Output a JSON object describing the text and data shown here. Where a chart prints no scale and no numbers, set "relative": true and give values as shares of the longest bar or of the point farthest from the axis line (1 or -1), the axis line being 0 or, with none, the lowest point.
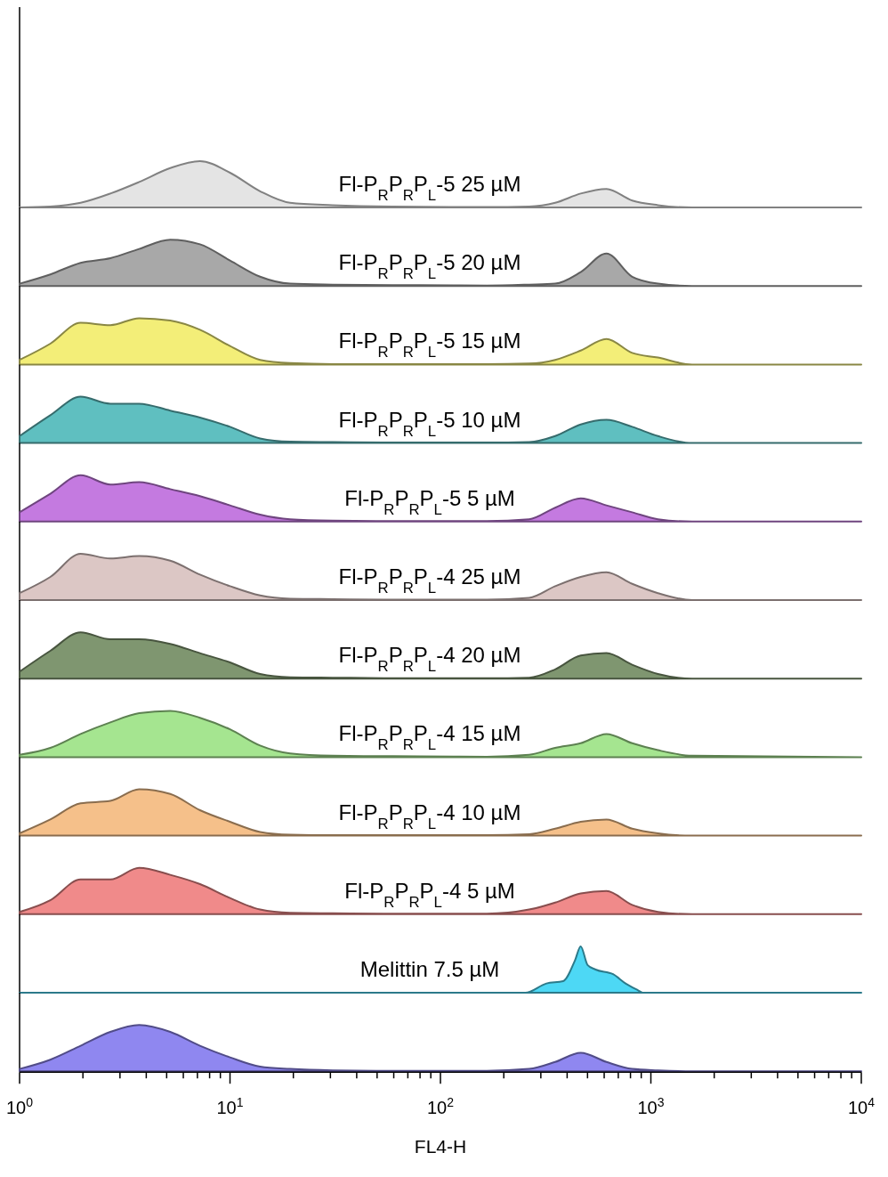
{
  "chart_data": [
    {
      "type": "area",
      "title": "Fl-P$_{R}$P$_{R}$P$_{L}$-5 25 µM",
      "relative": true,
      "log": "x",
      "tick_labels": false,
      "xlim": [
        1,
        10000
      ],
      "color": "#e4e4e4",
      "x": [
        1,
        1.4,
        1.95,
        2.7,
        3.7,
        5.2,
        7.2,
        10,
        13.9,
        19.3,
        30.7,
        59,
        166,
        264,
        351,
        464,
        615,
        815,
        1080,
        1570,
        10000
      ],
      "values": [
        0,
        0.02,
        0.1,
        0.3,
        0.55,
        0.85,
        1,
        0.75,
        0.35,
        0.1,
        0.05,
        0.02,
        0.01,
        0.02,
        0.1,
        0.3,
        0.4,
        0.15,
        0.05,
        0,
        0
      ]
    },
    {
      "type": "area",
      "title": "Fl-P$_{R}$P$_{R}$P$_{L}$-5 20 µM",
      "relative": true,
      "log": "x",
      "tick_labels": false,
      "xlim": [
        1,
        10000
      ],
      "color": "#a8a8a8",
      "x": [
        1,
        1.4,
        1.95,
        2.7,
        3.7,
        5.2,
        7.2,
        10,
        13.9,
        19.3,
        30.7,
        59,
        166,
        264,
        351,
        464,
        615,
        815,
        1080,
        1570,
        10000
      ],
      "values": [
        0.05,
        0.25,
        0.5,
        0.6,
        0.8,
        1,
        0.9,
        0.55,
        0.2,
        0.05,
        0.03,
        0.02,
        0.01,
        0.03,
        0.05,
        0.3,
        0.7,
        0.2,
        0.05,
        0,
        0
      ]
    },
    {
      "type": "area",
      "title": "Fl-P$_{R}$P$_{R}$P$_{L}$-5 15 µM",
      "relative": true,
      "log": "x",
      "tick_labels": false,
      "xlim": [
        1,
        10000
      ],
      "color": "#f3ee78",
      "x": [
        1,
        1.4,
        1.95,
        2.7,
        3.7,
        5.2,
        7.2,
        10,
        13.9,
        19.3,
        30.7,
        59,
        166,
        264,
        351,
        464,
        615,
        815,
        1080,
        1570,
        10000
      ],
      "values": [
        0.1,
        0.45,
        0.9,
        0.85,
        1,
        0.95,
        0.75,
        0.4,
        0.1,
        0.03,
        0.01,
        0.01,
        0.01,
        0.02,
        0.1,
        0.3,
        0.55,
        0.25,
        0.15,
        0,
        0
      ]
    },
    {
      "type": "area",
      "title": "Fl-P$_{R}$P$_{R}$P$_{L}$-5 10 µM",
      "relative": true,
      "log": "x",
      "tick_labels": false,
      "xlim": [
        1,
        10000
      ],
      "color": "#5fbfc0",
      "x": [
        1,
        1.4,
        1.95,
        2.7,
        3.7,
        5.2,
        7.2,
        10,
        13.9,
        19.3,
        30.7,
        59,
        166,
        264,
        351,
        464,
        615,
        815,
        1080,
        1570,
        10000
      ],
      "values": [
        0.15,
        0.6,
        1,
        0.85,
        0.85,
        0.7,
        0.55,
        0.35,
        0.1,
        0.03,
        0.02,
        0.01,
        0.01,
        0.02,
        0.15,
        0.4,
        0.5,
        0.35,
        0.15,
        0,
        0
      ]
    },
    {
      "type": "area",
      "title": "Fl-P$_{R}$P$_{R}$P$_{L}$-5 5 µM",
      "relative": true,
      "log": "x",
      "tick_labels": false,
      "xlim": [
        1,
        10000
      ],
      "color": "#c47ae0",
      "x": [
        1,
        1.4,
        1.95,
        2.7,
        3.7,
        5.2,
        7.2,
        10,
        13.9,
        19.3,
        30.7,
        59,
        166,
        264,
        351,
        464,
        615,
        815,
        1080,
        1570,
        10000
      ],
      "values": [
        0.2,
        0.6,
        1,
        0.8,
        0.85,
        0.7,
        0.55,
        0.35,
        0.15,
        0.05,
        0.02,
        0.01,
        0.01,
        0.05,
        0.3,
        0.5,
        0.35,
        0.2,
        0.05,
        0,
        0
      ]
    },
    {
      "type": "area",
      "title": "Fl-P$_{R}$P$_{R}$P$_{L}$-4 25 µM",
      "relative": true,
      "log": "x",
      "tick_labels": false,
      "xlim": [
        1,
        10000
      ],
      "color": "#dcc7c5",
      "x": [
        1,
        1.4,
        1.95,
        2.7,
        3.7,
        5.2,
        7.2,
        10,
        13.9,
        19.3,
        30.7,
        59,
        166,
        264,
        351,
        464,
        615,
        815,
        1080,
        1570,
        10000
      ],
      "values": [
        0.15,
        0.5,
        1,
        0.9,
        0.95,
        0.85,
        0.55,
        0.3,
        0.1,
        0.03,
        0.02,
        0.01,
        0.01,
        0.05,
        0.3,
        0.5,
        0.6,
        0.35,
        0.15,
        0,
        0
      ]
    },
    {
      "type": "area",
      "title": "Fl-P$_{R}$P$_{R}$P$_{L}$-4 20 µM",
      "relative": true,
      "log": "x",
      "tick_labels": false,
      "xlim": [
        1,
        10000
      ],
      "color": "#7f9670",
      "x": [
        1,
        1.4,
        1.95,
        2.7,
        3.7,
        5.2,
        7.2,
        10,
        13.9,
        19.3,
        30.7,
        59,
        166,
        264,
        351,
        464,
        615,
        815,
        1080,
        1570,
        10000
      ],
      "values": [
        0.15,
        0.6,
        1,
        0.85,
        0.85,
        0.75,
        0.55,
        0.35,
        0.1,
        0.03,
        0.02,
        0.01,
        0.01,
        0.02,
        0.2,
        0.5,
        0.55,
        0.3,
        0.1,
        0,
        0
      ]
    },
    {
      "type": "area",
      "title": "Fl-P$_{R}$P$_{R}$P$_{L}$-4 15 µM",
      "relative": true,
      "log": "x",
      "tick_labels": false,
      "xlim": [
        1,
        10000
      ],
      "color": "#a5e590",
      "x": [
        1,
        1.4,
        1.95,
        2.7,
        3.7,
        5.2,
        7.2,
        10,
        13.9,
        19.3,
        30.7,
        59,
        166,
        264,
        351,
        464,
        615,
        815,
        1080,
        1570,
        10000
      ],
      "values": [
        0.05,
        0.2,
        0.5,
        0.75,
        0.95,
        1,
        0.85,
        0.6,
        0.25,
        0.08,
        0.03,
        0.02,
        0.01,
        0.05,
        0.2,
        0.3,
        0.5,
        0.3,
        0.15,
        0.03,
        0
      ]
    },
    {
      "type": "area",
      "title": "Fl-P$_{R}$P$_{R}$P$_{L}$-4 10 µM",
      "relative": true,
      "log": "x",
      "tick_labels": false,
      "xlim": [
        1,
        10000
      ],
      "color": "#f5c08a",
      "x": [
        1,
        1.4,
        1.95,
        2.7,
        3.7,
        5.2,
        7.2,
        10,
        13.9,
        19.3,
        30.7,
        59,
        166,
        264,
        351,
        464,
        615,
        815,
        1080,
        1570,
        10000
      ],
      "values": [
        0.05,
        0.35,
        0.7,
        0.75,
        1,
        0.9,
        0.55,
        0.3,
        0.08,
        0.02,
        0.01,
        0.01,
        0.01,
        0.03,
        0.15,
        0.3,
        0.35,
        0.15,
        0.05,
        0,
        0
      ]
    },
    {
      "type": "area",
      "title": "Fl-P$_{R}$P$_{R}$P$_{L}$-4 5 µM",
      "relative": true,
      "log": "x",
      "tick_labels": false,
      "xlim": [
        1,
        10000
      ],
      "color": "#f08a8a",
      "x": [
        1,
        1.4,
        1.95,
        2.7,
        3.7,
        5.2,
        7.2,
        10,
        13.9,
        19.3,
        30.7,
        59,
        166,
        264,
        351,
        464,
        615,
        815,
        1080,
        1570,
        10000
      ],
      "values": [
        0.05,
        0.3,
        0.75,
        0.75,
        1,
        0.85,
        0.65,
        0.35,
        0.1,
        0.03,
        0.02,
        0.01,
        0.01,
        0.1,
        0.25,
        0.45,
        0.5,
        0.2,
        0.05,
        0,
        0
      ]
    },
    {
      "type": "area",
      "title": "Melittin 7.5 µM",
      "relative": true,
      "log": "x",
      "tick_labels": false,
      "xlim": [
        1,
        10000
      ],
      "color": "#4dd8f5",
      "x": [
        1,
        253,
        319,
        383,
        436,
        464,
        500,
        546,
        661,
        758,
        870,
        914,
        10000
      ],
      "values": [
        0,
        0,
        0.2,
        0.25,
        0.7,
        1,
        0.6,
        0.5,
        0.4,
        0.2,
        0.05,
        0,
        0
      ]
    },
    {
      "type": "area",
      "relative": true,
      "log": "x",
      "tick_labels": "x",
      "xlim": [
        1,
        10000
      ],
      "xlabel": "FL4-H",
      "color": "#8f87f0",
      "x": [
        1,
        1.4,
        1.95,
        2.7,
        3.7,
        5.2,
        7.2,
        10,
        13.9,
        19.3,
        30.7,
        59,
        166,
        264,
        351,
        464,
        615,
        815,
        1080,
        1570,
        10000
      ],
      "values": [
        0.05,
        0.25,
        0.55,
        0.85,
        1,
        0.85,
        0.55,
        0.3,
        0.1,
        0.05,
        0.02,
        0.01,
        0.01,
        0.05,
        0.2,
        0.4,
        0.2,
        0.05,
        0.02,
        0,
        0
      ],
      "xticks": [
        {
          "value": 1,
          "label": "10$^{0}$"
        },
        {
          "value": 2,
          "label": null
        },
        {
          "value": 3,
          "label": null
        },
        {
          "value": 4,
          "label": null
        },
        {
          "value": 5,
          "label": null
        },
        {
          "value": 6,
          "label": null
        },
        {
          "value": 7,
          "label": null
        },
        {
          "value": 8,
          "label": null
        },
        {
          "value": 9,
          "label": null
        },
        {
          "value": 10,
          "label": "10$^{1}$"
        },
        {
          "value": 20,
          "label": null
        },
        {
          "value": 30,
          "label": null
        },
        {
          "value": 40,
          "label": null
        },
        {
          "value": 50,
          "label": null
        },
        {
          "value": 60,
          "label": null
        },
        {
          "value": 70,
          "label": null
        },
        {
          "value": 80,
          "label": null
        },
        {
          "value": 90,
          "label": null
        },
        {
          "value": 100,
          "label": "10$^{2}$"
        },
        {
          "value": 200,
          "label": null
        },
        {
          "value": 300,
          "label": null
        },
        {
          "value": 400,
          "label": null
        },
        {
          "value": 500,
          "label": null
        },
        {
          "value": 600,
          "label": null
        },
        {
          "value": 700,
          "label": null
        },
        {
          "value": 800,
          "label": null
        },
        {
          "value": 900,
          "label": null
        },
        {
          "value": 1000,
          "label": "10$^{3}$"
        },
        {
          "value": 2000,
          "label": null
        },
        {
          "value": 3000,
          "label": null
        },
        {
          "value": 4000,
          "label": null
        },
        {
          "value": 5000,
          "label": null
        },
        {
          "value": 6000,
          "label": null
        },
        {
          "value": 7000,
          "label": null
        },
        {
          "value": 8000,
          "label": null
        },
        {
          "value": 9000,
          "label": null
        },
        {
          "value": 10000,
          "label": "10$^{4}$"
        }
      ]
    }
  ]
}
